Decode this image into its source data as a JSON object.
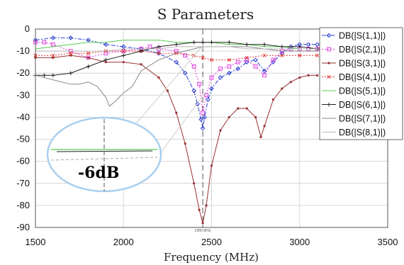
{
  "chart_data": {
    "type": "line",
    "title": "S Parameters",
    "xlabel": "Frequency (MHz)",
    "ylabel": "",
    "xlim": [
      1500,
      3500
    ],
    "ylim": [
      -90,
      0
    ],
    "xticks": [
      "1500",
      "2000",
      "2500",
      "3000",
      "3500"
    ],
    "yticks": [
      "0",
      "-10",
      "-20",
      "-30",
      "-40",
      "-50",
      "-60",
      "-70",
      "-80",
      "-90"
    ],
    "grid": true,
    "legend_position": "top-right",
    "marker": {
      "x": 2450,
      "label": "2450 MHz"
    },
    "callout_label": "-6dB",
    "series": [
      {
        "name": "DB(|S(1,1)|)",
        "color": "#2b3fd1",
        "style": "dashdot",
        "marker": "diamond",
        "x": [
          1500,
          1600,
          1700,
          1800,
          1900,
          2000,
          2100,
          2200,
          2300,
          2350,
          2400,
          2420,
          2440,
          2450,
          2460,
          2480,
          2500,
          2550,
          2600,
          2650,
          2700,
          2750,
          2800,
          2850,
          2900,
          2950,
          3000,
          3050,
          3100
        ],
        "y": [
          -5,
          -4,
          -4,
          -5,
          -7,
          -8,
          -9,
          -11,
          -15,
          -20,
          -28,
          -34,
          -41,
          -45,
          -40,
          -32,
          -27,
          -22,
          -20,
          -18,
          -15,
          -14,
          -19,
          -15,
          -11,
          -8,
          -7,
          -7,
          -7
        ]
      },
      {
        "name": "DB(|S(2,1)|)",
        "color": "#e040e0",
        "style": "dotted",
        "marker": "square",
        "x": [
          1500,
          1550,
          1600,
          1700,
          1800,
          1900,
          2000,
          2100,
          2150,
          2200,
          2300,
          2350,
          2400,
          2430,
          2450,
          2470,
          2500,
          2550,
          2600,
          2650,
          2700,
          2750,
          2800,
          2850,
          2900,
          2950,
          3000,
          3050,
          3100
        ],
        "y": [
          -6,
          -6,
          -7,
          -10,
          -13,
          -11,
          -10,
          -9,
          -8,
          -9,
          -10,
          -12,
          -17,
          -25,
          -38,
          -30,
          -22,
          -18,
          -17,
          -15,
          -14,
          -17,
          -21,
          -14,
          -10,
          -9,
          -9,
          -9,
          -9
        ]
      },
      {
        "name": "DB(|S(3,1)|)",
        "color": "#9a3030",
        "style": "solid",
        "marker": "circle",
        "x": [
          1500,
          1600,
          1700,
          1800,
          1900,
          2000,
          2100,
          2200,
          2250,
          2300,
          2350,
          2400,
          2430,
          2450,
          2470,
          2500,
          2550,
          2600,
          2650,
          2700,
          2750,
          2780,
          2800,
          2850,
          2900,
          2950,
          3000,
          3050,
          3100
        ],
        "y": [
          -13,
          -13,
          -12,
          -13,
          -15,
          -15,
          -16,
          -22,
          -28,
          -38,
          -52,
          -70,
          -82,
          -88,
          -80,
          -62,
          -46,
          -40,
          -36,
          -36,
          -40,
          -49,
          -44,
          -32,
          -27,
          -24,
          -22,
          -21,
          -21
        ]
      },
      {
        "name": "DB(|S(4,1)|)",
        "color": "#e03030",
        "style": "dotted",
        "marker": "x",
        "x": [
          1500,
          1600,
          1700,
          1800,
          1900,
          2000,
          2100,
          2200,
          2300,
          2400,
          2450,
          2500,
          2600,
          2700,
          2800,
          2900,
          3000,
          3100
        ],
        "y": [
          -12,
          -12,
          -11,
          -11,
          -10,
          -10,
          -10,
          -11,
          -11,
          -12,
          -13,
          -14,
          -14,
          -13,
          -12,
          -12,
          -12,
          -12
        ]
      },
      {
        "name": "DB(|S(5,1)|)",
        "color": "#55cc55",
        "style": "solid",
        "marker": "none",
        "x": [
          1500,
          1600,
          1700,
          1800,
          1900,
          2000,
          2100,
          2200,
          2300,
          2400,
          2450,
          2500,
          2600,
          2700,
          2800,
          2900,
          3000,
          3100
        ],
        "y": [
          -9,
          -8,
          -7,
          -6,
          -6,
          -5,
          -5,
          -5,
          -6,
          -6,
          -6,
          -6,
          -7,
          -7,
          -8,
          -8,
          -9,
          -9
        ]
      },
      {
        "name": "DB(|S(6,1)|)",
        "color": "#222222",
        "style": "solid",
        "marker": "plus",
        "x": [
          1500,
          1550,
          1600,
          1700,
          1800,
          1900,
          2000,
          2100,
          2200,
          2300,
          2400,
          2450,
          2500,
          2600,
          2700,
          2800,
          2900,
          3000,
          3100
        ],
        "y": [
          -21,
          -21,
          -21,
          -20,
          -17,
          -14,
          -12,
          -10,
          -8,
          -7,
          -6,
          -6,
          -6,
          -6,
          -7,
          -7,
          -8,
          -8,
          -9
        ]
      },
      {
        "name": "DB(|S(7,1)|)",
        "color": "#888888",
        "style": "solid",
        "marker": "none",
        "x": [
          1500,
          1600,
          1700,
          1750,
          1800,
          1850,
          1900,
          1920,
          1950,
          2000,
          2050,
          2100,
          2200,
          2300,
          2400,
          2450,
          2500,
          2600,
          2700,
          2800,
          2900,
          3000,
          3100
        ],
        "y": [
          -21,
          -23,
          -25,
          -25,
          -24,
          -26,
          -31,
          -35,
          -33,
          -29,
          -26,
          -19,
          -14,
          -11,
          -9,
          -8,
          -8,
          -8,
          -8,
          -9,
          -10,
          -10,
          -10
        ]
      },
      {
        "name": "DB(|S(8,1)|)",
        "color": "#bbbbbb",
        "style": "solid",
        "marker": "none",
        "x": [
          1500,
          1600,
          1700,
          1800,
          1900,
          2000,
          2100,
          2200,
          2300,
          2400,
          2450,
          2500,
          2600,
          2700,
          2800,
          2900,
          3000,
          3100
        ],
        "y": [
          -10,
          -10,
          -10,
          -10,
          -10,
          -9,
          -9,
          -9,
          -8,
          -8,
          -8,
          -8,
          -8,
          -9,
          -9,
          -9,
          -9,
          -9
        ]
      }
    ]
  }
}
